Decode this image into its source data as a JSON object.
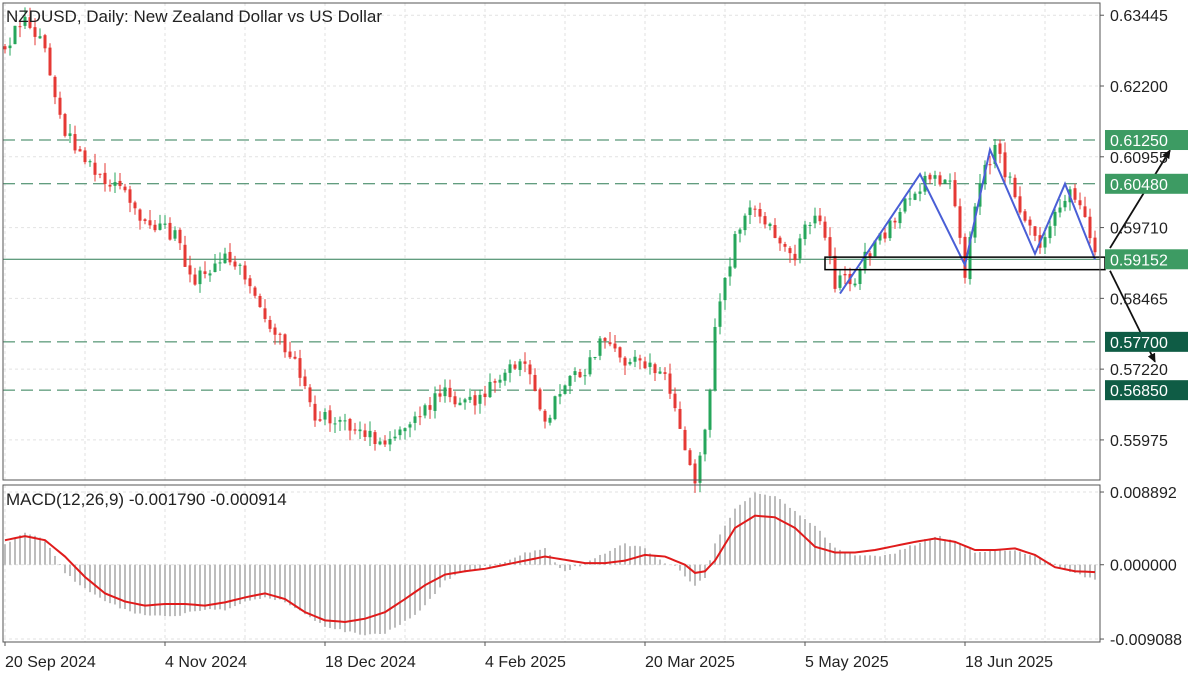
{
  "main_title": "NZDUSD, Daily:  New Zealand Dollar vs US Dollar",
  "macd_title": "MACD(12,26,9) -0.001790 -0.000914",
  "colors": {
    "bull": "#26a65b",
    "bear": "#e53935",
    "grid": "#e2e2e2",
    "level_line": "#2f7d55",
    "level_badge_light": "#3d9b63",
    "level_badge_dark": "#0f5c45",
    "pattern": "#4a5fd6",
    "macd_signal": "#e01b1b",
    "macd_hist": "#bdbdbd",
    "arrow": "#111111"
  },
  "chart_data": [
    {
      "type": "candlestick",
      "title": "NZDUSD, Daily:  New Zealand Dollar vs US Dollar",
      "ylim": [
        0.5527,
        0.6366
      ],
      "y_ticks": [
        "0.63445",
        "0.62200",
        "0.60955",
        "0.59710",
        "0.58465",
        "0.57220",
        "0.55975"
      ],
      "x_ticks": [
        {
          "label": "20 Sep 2024",
          "index": 0
        },
        {
          "label": "4 Nov 2024",
          "index": 32
        },
        {
          "label": "18 Dec 2024",
          "index": 64
        },
        {
          "label": "4 Feb 2025",
          "index": 96
        },
        {
          "label": "20 Mar 2025",
          "index": 128
        },
        {
          "label": "5 May 2025",
          "index": 160
        },
        {
          "label": "18 Jun 2025",
          "index": 192
        }
      ],
      "grid": "dashed, on",
      "levels": [
        {
          "value": "0.61250",
          "price": 0.6125,
          "style": "dashed",
          "badge": "light"
        },
        {
          "value": "0.60480",
          "price": 0.6048,
          "style": "dashed",
          "badge": "light"
        },
        {
          "value": "0.59152",
          "price": 0.59152,
          "style": "solid",
          "badge": "light"
        },
        {
          "value": "0.57700",
          "price": 0.577,
          "style": "dashed",
          "badge": "dark"
        },
        {
          "value": "0.56850",
          "price": 0.5685,
          "style": "dashed",
          "badge": "dark"
        }
      ],
      "anchors": [
        [
          0,
          0.628
        ],
        [
          4,
          0.6345
        ],
        [
          8,
          0.6285
        ],
        [
          12,
          0.614
        ],
        [
          16,
          0.6085
        ],
        [
          22,
          0.6045
        ],
        [
          28,
          0.5985
        ],
        [
          34,
          0.5955
        ],
        [
          38,
          0.5875
        ],
        [
          44,
          0.5925
        ],
        [
          50,
          0.586
        ],
        [
          54,
          0.5785
        ],
        [
          58,
          0.5735
        ],
        [
          62,
          0.5645
        ],
        [
          66,
          0.5625
        ],
        [
          72,
          0.5615
        ],
        [
          76,
          0.5585
        ],
        [
          80,
          0.5625
        ],
        [
          84,
          0.5655
        ],
        [
          88,
          0.5685
        ],
        [
          92,
          0.5655
        ],
        [
          96,
          0.5685
        ],
        [
          100,
          0.5715
        ],
        [
          104,
          0.5735
        ],
        [
          108,
          0.5625
        ],
        [
          112,
          0.5705
        ],
        [
          116,
          0.5725
        ],
        [
          120,
          0.5785
        ],
        [
          124,
          0.5735
        ],
        [
          128,
          0.5735
        ],
        [
          132,
          0.5705
        ],
        [
          134,
          0.5665
        ],
        [
          136,
          0.5575
        ],
        [
          138,
          0.5535
        ],
        [
          140,
          0.5605
        ],
        [
          142,
          0.5785
        ],
        [
          146,
          0.5955
        ],
        [
          150,
          0.6015
        ],
        [
          154,
          0.5955
        ],
        [
          158,
          0.5925
        ],
        [
          162,
          0.6005
        ],
        [
          166,
          0.5875
        ],
        [
          170,
          0.5885
        ],
        [
          174,
          0.5945
        ],
        [
          178,
          0.5985
        ],
        [
          182,
          0.6035
        ],
        [
          186,
          0.6065
        ],
        [
          189,
          0.6045
        ],
        [
          192,
          0.5895
        ],
        [
          195,
          0.6055
        ],
        [
          198,
          0.6105
        ],
        [
          201,
          0.6055
        ],
        [
          204,
          0.5985
        ],
        [
          207,
          0.5935
        ],
        [
          210,
          0.5985
        ],
        [
          213,
          0.6045
        ],
        [
          216,
          0.5995
        ],
        [
          218,
          0.5915
        ]
      ],
      "pattern_points": [
        [
          167,
          0.5855
        ],
        [
          183,
          0.6065
        ],
        [
          192,
          0.5905
        ],
        [
          197,
          0.6108
        ],
        [
          206,
          0.5925
        ],
        [
          212,
          0.6048
        ],
        [
          218,
          0.5915
        ]
      ],
      "box": {
        "from_index": 164,
        "to_index": 220,
        "high": 0.5919,
        "low": 0.5897
      },
      "arrows": [
        {
          "from": [
            221,
            0.5935
          ],
          "to": [
            233,
            0.6107
          ]
        },
        {
          "from": [
            221,
            0.5895
          ],
          "to": [
            230,
            0.5735
          ]
        }
      ]
    },
    {
      "type": "macd",
      "title": "MACD(12,26,9) -0.001790 -0.000914",
      "ylim": [
        -0.00945,
        0.00975
      ],
      "y_ticks": [
        "0.008892",
        "0.000000",
        "-0.009088"
      ],
      "macd_value": -0.00179,
      "signal_value": -0.000914,
      "hist_anchors": [
        [
          0,
          0.0025
        ],
        [
          4,
          0.0038
        ],
        [
          8,
          0.003
        ],
        [
          12,
          -0.001
        ],
        [
          16,
          -0.003
        ],
        [
          20,
          -0.0045
        ],
        [
          24,
          -0.0055
        ],
        [
          28,
          -0.0062
        ],
        [
          32,
          -0.0064
        ],
        [
          36,
          -0.006
        ],
        [
          40,
          -0.0055
        ],
        [
          44,
          -0.0055
        ],
        [
          48,
          -0.0045
        ],
        [
          52,
          -0.004
        ],
        [
          56,
          -0.0045
        ],
        [
          60,
          -0.006
        ],
        [
          64,
          -0.0075
        ],
        [
          68,
          -0.0082
        ],
        [
          72,
          -0.0086
        ],
        [
          76,
          -0.0083
        ],
        [
          80,
          -0.007
        ],
        [
          84,
          -0.005
        ],
        [
          88,
          -0.002
        ],
        [
          92,
          -0.0008
        ],
        [
          96,
          -0.0003
        ],
        [
          100,
          0.0003
        ],
        [
          104,
          0.0015
        ],
        [
          108,
          0.002
        ],
        [
          110,
          0.0002
        ],
        [
          112,
          -0.0008
        ],
        [
          116,
          0.0002
        ],
        [
          120,
          0.0015
        ],
        [
          124,
          0.0025
        ],
        [
          128,
          0.002
        ],
        [
          130,
          0.001
        ],
        [
          132,
          0.0002
        ],
        [
          134,
          -0.0002
        ],
        [
          136,
          -0.0015
        ],
        [
          138,
          -0.0025
        ],
        [
          140,
          -0.0015
        ],
        [
          142,
          0.0025
        ],
        [
          146,
          0.0068
        ],
        [
          150,
          0.0087
        ],
        [
          154,
          0.0085
        ],
        [
          158,
          0.0065
        ],
        [
          162,
          0.0048
        ],
        [
          166,
          0.002
        ],
        [
          170,
          0.001
        ],
        [
          174,
          0.001
        ],
        [
          178,
          0.0015
        ],
        [
          182,
          0.0025
        ],
        [
          186,
          0.0035
        ],
        [
          190,
          0.003
        ],
        [
          194,
          0.0015
        ],
        [
          198,
          0.0018
        ],
        [
          202,
          0.0018
        ],
        [
          206,
          0.001
        ],
        [
          210,
          0.0
        ],
        [
          214,
          -0.001
        ],
        [
          218,
          -0.0018
        ]
      ],
      "signal_anchors": [
        [
          0,
          0.003
        ],
        [
          4,
          0.0035
        ],
        [
          8,
          0.003
        ],
        [
          12,
          0.001
        ],
        [
          16,
          -0.0015
        ],
        [
          20,
          -0.0035
        ],
        [
          24,
          -0.0045
        ],
        [
          28,
          -0.005
        ],
        [
          32,
          -0.0048
        ],
        [
          36,
          -0.0048
        ],
        [
          40,
          -0.005
        ],
        [
          44,
          -0.0046
        ],
        [
          48,
          -0.004
        ],
        [
          52,
          -0.0035
        ],
        [
          56,
          -0.0042
        ],
        [
          60,
          -0.0058
        ],
        [
          64,
          -0.0068
        ],
        [
          68,
          -0.007
        ],
        [
          72,
          -0.0066
        ],
        [
          76,
          -0.0058
        ],
        [
          80,
          -0.0042
        ],
        [
          84,
          -0.0025
        ],
        [
          88,
          -0.0012
        ],
        [
          92,
          -0.0008
        ],
        [
          96,
          -0.0005
        ],
        [
          100,
          0.0
        ],
        [
          104,
          0.0005
        ],
        [
          108,
          0.001
        ],
        [
          112,
          0.0006
        ],
        [
          116,
          0.0002
        ],
        [
          120,
          0.0002
        ],
        [
          124,
          0.0005
        ],
        [
          128,
          0.0012
        ],
        [
          132,
          0.001
        ],
        [
          136,
          0.0
        ],
        [
          138,
          -0.001
        ],
        [
          140,
          -0.0008
        ],
        [
          142,
          0.0005
        ],
        [
          146,
          0.0045
        ],
        [
          150,
          0.006
        ],
        [
          154,
          0.0058
        ],
        [
          158,
          0.0045
        ],
        [
          162,
          0.0022
        ],
        [
          166,
          0.0015
        ],
        [
          170,
          0.0015
        ],
        [
          174,
          0.0018
        ],
        [
          178,
          0.0023
        ],
        [
          182,
          0.0028
        ],
        [
          186,
          0.0032
        ],
        [
          190,
          0.0028
        ],
        [
          194,
          0.0018
        ],
        [
          198,
          0.0018
        ],
        [
          202,
          0.002
        ],
        [
          206,
          0.0012
        ],
        [
          210,
          -0.0003
        ],
        [
          214,
          -0.0008
        ],
        [
          218,
          -0.0009
        ]
      ]
    }
  ]
}
